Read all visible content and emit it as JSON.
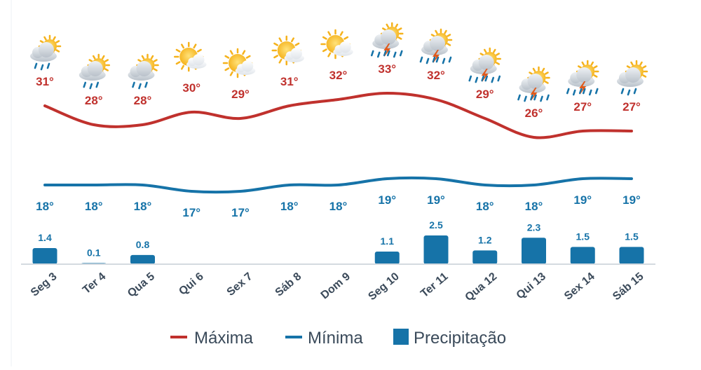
{
  "chart_data": {
    "type": "line",
    "categories": [
      "Seg 3",
      "Ter 4",
      "Qua 5",
      "Qui 6",
      "Sex 7",
      "Sáb 8",
      "Dom 9",
      "Seg 10",
      "Ter 11",
      "Qua 12",
      "Qui 13",
      "Sex 14",
      "Sáb 15"
    ],
    "icons": [
      "rain-sun-icon",
      "rain-sun-icon",
      "rain-sun-icon",
      "sun-cloud-icon",
      "sun-cloud-icon",
      "sun-cloud-icon",
      "sun-cloud-icon",
      "storm-sun-icon",
      "storm-sun-icon",
      "storm-sun-icon",
      "storm-sun-icon",
      "storm-sun-icon",
      "rain-sun-icon"
    ],
    "series": [
      {
        "name": "Máxima",
        "kind": "line",
        "color": "#c0312d",
        "values": [
          31,
          28,
          28,
          30,
          29,
          31,
          32,
          33,
          32,
          29,
          26,
          27,
          27
        ],
        "labels": [
          "31°",
          "28°",
          "28°",
          "30°",
          "29°",
          "31°",
          "32°",
          "33°",
          "32°",
          "29°",
          "26°",
          "27°",
          "27°"
        ]
      },
      {
        "name": "Mínima",
        "kind": "line",
        "color": "#1673a8",
        "values": [
          18,
          18,
          18,
          17,
          17,
          18,
          18,
          19,
          19,
          18,
          18,
          19,
          19
        ],
        "labels": [
          "18°",
          "18°",
          "18°",
          "17°",
          "17°",
          "18°",
          "18°",
          "19°",
          "19°",
          "18°",
          "18°",
          "19°",
          "19°"
        ]
      },
      {
        "name": "Precipitação",
        "kind": "bar",
        "color": "#1673a8",
        "values": [
          1.4,
          0.1,
          0.8,
          0,
          0,
          0,
          0,
          1.1,
          2.5,
          1.2,
          2.3,
          1.5,
          1.5
        ],
        "labels": [
          "1.4",
          "0.1",
          "0.8",
          "",
          "",
          "",
          "",
          "1.1",
          "2.5",
          "1.2",
          "2.3",
          "1.5",
          "1.5"
        ]
      }
    ],
    "axis_color": "#d4dae0",
    "legend": {
      "position": "bottom",
      "items": [
        "Máxima",
        "Mínima",
        "Precipitação"
      ]
    }
  }
}
